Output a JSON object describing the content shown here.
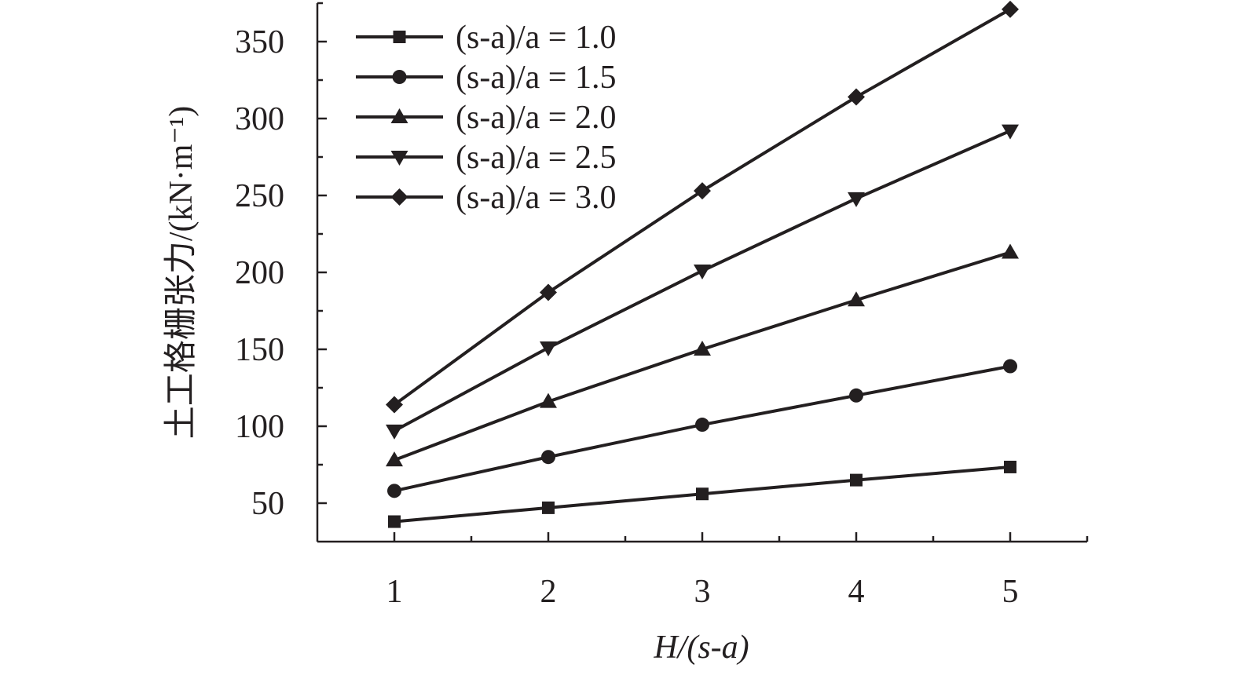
{
  "chart_data": {
    "type": "line",
    "xlabel": "H/(s-a)",
    "ylabel": "土工格栅张力/(kN·m⁻¹)",
    "x": [
      1,
      2,
      3,
      4,
      5
    ],
    "xlim": [
      0.5,
      5.5
    ],
    "ylim": [
      25,
      375
    ],
    "xticks": [
      "1",
      "2",
      "3",
      "4",
      "5"
    ],
    "yticks": [
      "50",
      "100",
      "150",
      "200",
      "250",
      "300",
      "350"
    ],
    "grid": false,
    "legend_position": "top-left",
    "color": "#231f20",
    "series": [
      {
        "name": "(s-a)/a = 1.0",
        "marker": "square",
        "values": [
          38,
          47,
          56,
          65,
          73.5
        ]
      },
      {
        "name": "(s-a)/a = 1.5",
        "marker": "circle",
        "values": [
          58,
          80,
          101,
          120,
          139
        ]
      },
      {
        "name": "(s-a)/a = 2.0",
        "marker": "triangle-up",
        "values": [
          78,
          116,
          150,
          182,
          213
        ]
      },
      {
        "name": "(s-a)/a = 2.5",
        "marker": "triangle-down",
        "values": [
          97,
          151,
          201,
          248,
          292
        ]
      },
      {
        "name": "(s-a)/a = 3.0",
        "marker": "diamond",
        "values": [
          114,
          187,
          253,
          314,
          371
        ]
      }
    ]
  }
}
